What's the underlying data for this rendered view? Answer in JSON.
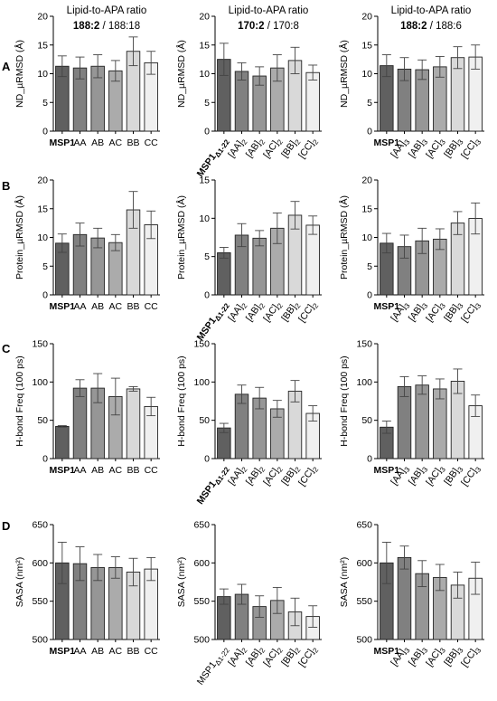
{
  "row_labels": [
    "A",
    "B",
    "C",
    "D"
  ],
  "column_headers": [
    {
      "line1": "Lipid-to-APA ratio",
      "bold": "188:2",
      "rest": " / 188:18"
    },
    {
      "line1": "Lipid-to-APA ratio",
      "bold": "170:2",
      "rest": " / 170:8"
    },
    {
      "line1": "Lipid-to-APA ratio",
      "bold": "188:2",
      "rest": " / 188:6"
    }
  ],
  "colors": {
    "bar_fills": [
      "#606060",
      "#808080",
      "#969696",
      "#ababab",
      "#d9d9d9",
      "#f0f0f0"
    ],
    "outline": "#222222",
    "error_bar": "#444444"
  },
  "category_sets": {
    "set1": [
      {
        "base": "MSP1",
        "bold": true
      },
      {
        "base": "AA"
      },
      {
        "base": "AB"
      },
      {
        "base": "AC"
      },
      {
        "base": "BB"
      },
      {
        "base": "CC"
      }
    ],
    "set2": [
      {
        "base": "MSP1",
        "sub": "Δ1-22",
        "bold": true
      },
      {
        "base": "[AA]",
        "sub": "2"
      },
      {
        "base": "[AB]",
        "sub": "2"
      },
      {
        "base": "[AC]",
        "sub": "2"
      },
      {
        "base": "[BB]",
        "sub": "2"
      },
      {
        "base": "[CC]",
        "sub": "2"
      }
    ],
    "set2_plain": [
      {
        "base": "MSP1",
        "sub": "Δ1-22"
      },
      {
        "base": "[AA]",
        "sub": "2"
      },
      {
        "base": "[AB]",
        "sub": "2"
      },
      {
        "base": "[AC]",
        "sub": "2"
      },
      {
        "base": "[BB]",
        "sub": "2"
      },
      {
        "base": "[CC]",
        "sub": "2"
      }
    ],
    "set3": [
      {
        "base": "MSP1",
        "bold": true
      },
      {
        "base": "[AA]",
        "sub": "3"
      },
      {
        "base": "[AB]",
        "sub": "3"
      },
      {
        "base": "[AC]",
        "sub": "3"
      },
      {
        "base": "[BB]",
        "sub": "3"
      },
      {
        "base": "[CC]",
        "sub": "3"
      }
    ]
  },
  "chart_data": [
    {
      "type": "bar",
      "row": 0,
      "col": 0,
      "ylabel": "ND_µRMSD (Å)",
      "ylim": [
        0,
        20
      ],
      "yticks": [
        0,
        5,
        10,
        15,
        20
      ],
      "cats": "set1",
      "values": [
        11.3,
        11.0,
        11.3,
        10.5,
        13.9,
        11.9
      ],
      "errors": [
        1.8,
        1.9,
        2.0,
        1.8,
        2.5,
        2.0
      ]
    },
    {
      "type": "bar",
      "row": 0,
      "col": 1,
      "ylabel": "ND_µRMSD (Å)",
      "ylim": [
        0,
        20
      ],
      "yticks": [
        0,
        5,
        10,
        15,
        20
      ],
      "cats": "set2",
      "values": [
        12.5,
        10.4,
        9.6,
        11.0,
        12.3,
        10.2
      ],
      "errors": [
        2.8,
        1.5,
        1.6,
        2.3,
        2.3,
        1.3
      ]
    },
    {
      "type": "bar",
      "row": 0,
      "col": 2,
      "ylabel": "ND_µRMSD (Å)",
      "ylim": [
        0,
        20
      ],
      "yticks": [
        0,
        5,
        10,
        15,
        20
      ],
      "cats": "set3",
      "values": [
        11.4,
        10.8,
        10.7,
        11.2,
        12.8,
        12.9
      ],
      "errors": [
        1.9,
        2.0,
        1.7,
        1.8,
        1.9,
        2.1
      ]
    },
    {
      "type": "bar",
      "row": 1,
      "col": 0,
      "ylabel": "Protein_µRMSD (Å)",
      "ylim": [
        0,
        20
      ],
      "yticks": [
        0,
        5,
        10,
        15,
        20
      ],
      "cats": "set1",
      "values": [
        9.0,
        10.5,
        9.9,
        9.1,
        14.8,
        12.2
      ],
      "errors": [
        1.6,
        2.0,
        1.7,
        1.4,
        3.2,
        2.4
      ]
    },
    {
      "type": "bar",
      "row": 1,
      "col": 1,
      "ylabel": "Protein_µRMSD (Å)",
      "ylim": [
        0,
        15
      ],
      "yticks": [
        0,
        5,
        10,
        15
      ],
      "cats": "set2",
      "values": [
        5.5,
        7.8,
        7.4,
        8.7,
        10.4,
        9.1
      ],
      "errors": [
        0.7,
        1.5,
        1.0,
        2.0,
        1.8,
        1.2
      ]
    },
    {
      "type": "bar",
      "row": 1,
      "col": 2,
      "ylabel": "Protein_µRMSD (Å)",
      "ylim": [
        0,
        20
      ],
      "yticks": [
        0,
        5,
        10,
        15,
        20
      ],
      "cats": "set3",
      "values": [
        9.0,
        8.4,
        9.4,
        9.7,
        12.5,
        13.3
      ],
      "errors": [
        1.7,
        2.0,
        2.2,
        1.8,
        2.0,
        2.7
      ]
    },
    {
      "type": "bar",
      "row": 2,
      "col": 0,
      "ylabel": "H-bond Freq (100 ps)",
      "ylim": [
        0,
        150
      ],
      "yticks": [
        0,
        50,
        100,
        150
      ],
      "cats": "set1",
      "values": [
        42,
        92,
        92,
        81,
        91,
        68
      ],
      "errors": [
        1,
        11,
        19,
        24,
        3,
        12
      ]
    },
    {
      "type": "bar",
      "row": 2,
      "col": 1,
      "ylabel": "H-bond Freq (100 ps)",
      "ylim": [
        0,
        150
      ],
      "yticks": [
        0,
        50,
        100,
        150
      ],
      "cats": "set2",
      "values": [
        40,
        84,
        79,
        65,
        88,
        59
      ],
      "errors": [
        6,
        12,
        14,
        11,
        14,
        10
      ]
    },
    {
      "type": "bar",
      "row": 2,
      "col": 2,
      "ylabel": "H-bond Freq (100 ps)",
      "ylim": [
        0,
        150
      ],
      "yticks": [
        0,
        50,
        100,
        150
      ],
      "cats": "set3",
      "values": [
        41,
        94,
        96,
        91,
        101,
        69
      ],
      "errors": [
        8,
        13,
        12,
        13,
        16,
        14
      ]
    },
    {
      "type": "bar",
      "row": 3,
      "col": 0,
      "ylabel": "SASA (nm²)",
      "ylim": [
        500,
        650
      ],
      "yticks": [
        500,
        550,
        600,
        650
      ],
      "cats": "set1",
      "values": [
        600,
        599,
        594,
        594,
        588,
        592
      ],
      "errors": [
        27,
        22,
        17,
        14,
        18,
        15
      ]
    },
    {
      "type": "bar",
      "row": 3,
      "col": 1,
      "ylabel": "SASA (nm²)",
      "ylim": [
        500,
        650
      ],
      "yticks": [
        500,
        550,
        600,
        650
      ],
      "cats": "set2_plain",
      "values": [
        556,
        559,
        543,
        551,
        536,
        530
      ],
      "errors": [
        10,
        13,
        14,
        17,
        18,
        14
      ]
    },
    {
      "type": "bar",
      "row": 3,
      "col": 2,
      "ylabel": "SASA (nm²)",
      "ylim": [
        500,
        650
      ],
      "yticks": [
        500,
        550,
        600,
        650
      ],
      "cats": "set3",
      "values": [
        600,
        607,
        586,
        581,
        571,
        580
      ],
      "errors": [
        27,
        15,
        17,
        17,
        17,
        21
      ]
    }
  ]
}
